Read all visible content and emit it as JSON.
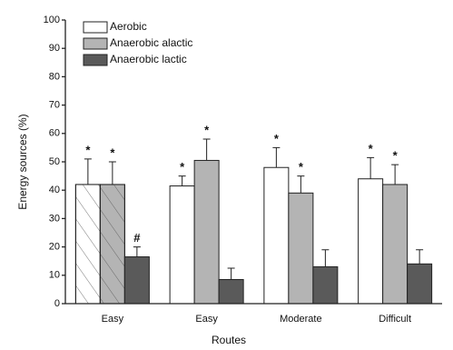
{
  "chart_data": {
    "type": "bar",
    "x_label": "Routes",
    "y_label": "Energy sources (%)",
    "categories": [
      "Easy",
      "Easy",
      "Moderate",
      "Difficult"
    ],
    "ylim": [
      0,
      100
    ],
    "yticks": [
      0,
      10,
      20,
      30,
      40,
      50,
      60,
      70,
      80,
      90,
      100
    ],
    "legend": "top-left",
    "series": [
      {
        "name": "Aerobic",
        "color": "#ffffff",
        "values": [
          42,
          41.5,
          48,
          44
        ],
        "errors": [
          9,
          3.5,
          7,
          7.5
        ],
        "annotations": [
          "*",
          "*",
          "*",
          "*"
        ],
        "hatch": [
          true,
          false,
          false,
          false
        ]
      },
      {
        "name": "Anaerobic alactic",
        "color": "#b4b4b4",
        "values": [
          42,
          50.5,
          39,
          42
        ],
        "errors": [
          8,
          7.5,
          6,
          7
        ],
        "annotations": [
          "*",
          "*",
          "*",
          "*"
        ],
        "hatch": [
          true,
          false,
          false,
          false
        ]
      },
      {
        "name": "Anaerobic lactic",
        "color": "#5a5a5a",
        "values": [
          16.5,
          8.5,
          13,
          14
        ],
        "errors": [
          3.5,
          4,
          6,
          5
        ],
        "annotations": [
          "#",
          null,
          null,
          null
        ],
        "hatch": [
          false,
          false,
          false,
          false
        ]
      }
    ]
  }
}
